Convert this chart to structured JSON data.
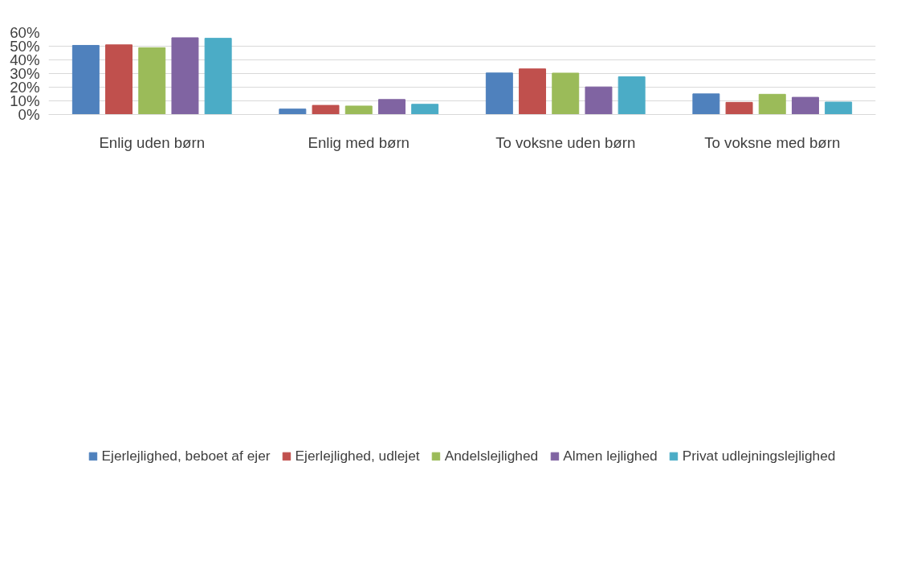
{
  "chart_data": {
    "type": "bar",
    "categories": [
      "Enlig uden børn",
      "Enlig med børn",
      "To voksne uden børn",
      "To voksne med børn"
    ],
    "series": [
      {
        "name": "Ejerlejlighed, beboet af ejer",
        "color": "#4f81bd",
        "values": [
          50.6,
          4.0,
          30.4,
          15.1
        ]
      },
      {
        "name": "Ejerlejlighed, udlejet",
        "color": "#c0504d",
        "values": [
          51.0,
          6.7,
          33.4,
          8.9
        ]
      },
      {
        "name": "Andelslejlighed",
        "color": "#9bbb59",
        "values": [
          48.9,
          6.2,
          30.3,
          14.8
        ]
      },
      {
        "name": "Almen lejlighed",
        "color": "#8064a2",
        "values": [
          56.2,
          11.0,
          20.2,
          12.6
        ]
      },
      {
        "name": "Privat udlejningslejlighed",
        "color": "#4bacc6",
        "values": [
          55.8,
          7.5,
          27.6,
          9.1
        ]
      }
    ],
    "ylim": [
      0,
      60
    ],
    "yticks": [
      {
        "value": 0,
        "label": "0%"
      },
      {
        "value": 10,
        "label": "10%"
      },
      {
        "value": 20,
        "label": "20%"
      },
      {
        "value": 30,
        "label": "30%"
      },
      {
        "value": 40,
        "label": "40%"
      },
      {
        "value": 50,
        "label": "50%"
      },
      {
        "value": 60,
        "label": "60%"
      }
    ],
    "grid": "y",
    "legend": "bottom"
  }
}
